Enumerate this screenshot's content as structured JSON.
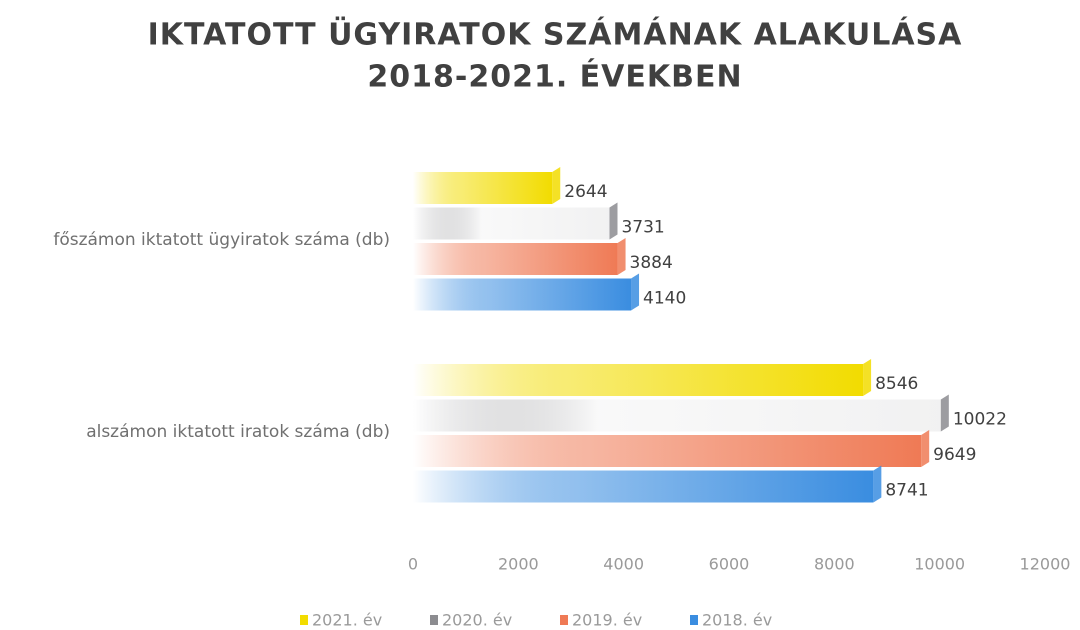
{
  "chart_data": {
    "type": "bar",
    "orientation": "horizontal",
    "title": "IKTATOTT ÜGYIRATOK SZÁMÁNAK ALAKULÁSA",
    "subtitle": "2018-2021. ÉVEKBEN",
    "categories": [
      "főszámon iktatott ügyiratok száma (db)",
      "alszámon iktatott iratok száma (db)"
    ],
    "series": [
      {
        "name": "2021. év",
        "color": "#f2dc00",
        "values": [
          2644,
          8546
        ]
      },
      {
        "name": "2020. év",
        "color": "#8c8c90",
        "values": [
          3731,
          10022
        ]
      },
      {
        "name": "2019. év",
        "color": "#ef7a55",
        "values": [
          3884,
          9649
        ]
      },
      {
        "name": "2018. év",
        "color": "#3a8de0",
        "values": [
          4140,
          8741
        ]
      }
    ],
    "xlim": [
      0,
      12000
    ],
    "xticks": [
      0,
      2000,
      4000,
      6000,
      8000,
      10000,
      12000
    ],
    "grid": false,
    "legend": "bottom"
  }
}
